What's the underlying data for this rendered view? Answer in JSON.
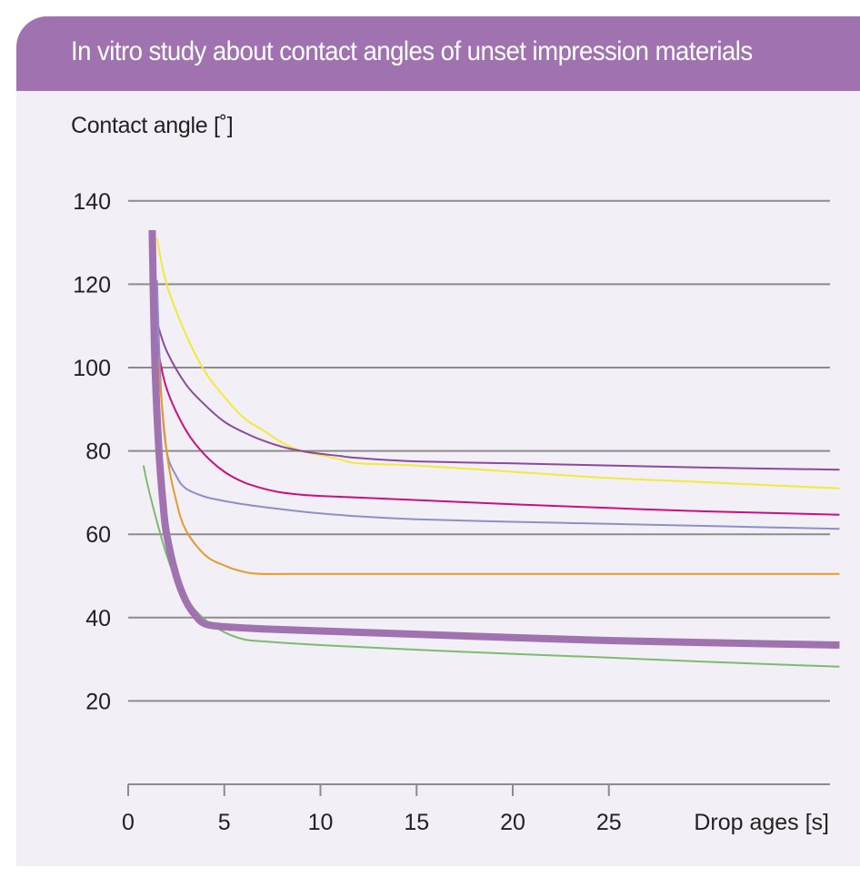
{
  "header": {
    "title": "In vitro study about contact angles of unset impression materials"
  },
  "colors": {
    "header_bg": "#a073b0",
    "panel_bg": "#f3eff6",
    "grid": "#8c8c8c"
  },
  "chart_data": {
    "type": "line",
    "title": "In vitro study about contact angles of unset impression materials",
    "xlabel": "Drop ages [s]",
    "ylabel": "Contact angle [˚]",
    "xlim": [
      0,
      37
    ],
    "ylim": [
      0,
      140
    ],
    "x_ticks": [
      "0",
      "5",
      "10",
      "15",
      "20",
      "25"
    ],
    "y_ticks": [
      "20",
      "40",
      "60",
      "80",
      "100",
      "120",
      "140"
    ],
    "grid": "horizontal",
    "series": [
      {
        "name": "yellow",
        "color": "#f2ea3a",
        "width": 2,
        "x": [
          1.5,
          2,
          3,
          4,
          5,
          6,
          7,
          8,
          9,
          10,
          11,
          12,
          15,
          20,
          25,
          30,
          37
        ],
        "y": [
          131,
          120,
          108,
          99,
          93,
          88,
          85,
          82,
          80,
          79,
          78,
          77,
          76.5,
          75,
          73.5,
          72.5,
          71
        ]
      },
      {
        "name": "purple",
        "color": "#8b4a9c",
        "width": 2,
        "x": [
          1.3,
          1.5,
          2,
          3,
          4,
          5,
          6,
          7,
          8,
          9,
          10,
          11,
          12,
          15,
          20,
          25,
          30,
          37
        ],
        "y": [
          115,
          111,
          104,
          96,
          91,
          87,
          84.5,
          82.5,
          81,
          80,
          79.3,
          78.8,
          78.3,
          77.5,
          77,
          76.5,
          76,
          75.5
        ]
      },
      {
        "name": "magenta",
        "color": "#c8117f",
        "width": 2,
        "x": [
          1.3,
          1.5,
          2,
          3,
          4,
          5,
          6,
          7,
          8,
          9,
          10,
          11,
          12,
          15,
          20,
          25,
          30,
          37
        ],
        "y": [
          117,
          106,
          95,
          85,
          79,
          75,
          72.5,
          71,
          70,
          69.5,
          69.2,
          69,
          68.8,
          68.2,
          67.2,
          66.3,
          65.5,
          64.7
        ]
      },
      {
        "name": "lavender",
        "color": "#8e8fc7",
        "width": 2,
        "x": [
          1.5,
          1.7,
          2,
          2.5,
          3,
          4,
          5,
          6,
          8,
          10,
          12,
          15,
          20,
          25,
          30,
          37
        ],
        "y": [
          121,
          95,
          80,
          74,
          71,
          69,
          68,
          67.2,
          66,
          65,
          64.3,
          63.6,
          63,
          62.5,
          62,
          61.3
        ]
      },
      {
        "name": "orange",
        "color": "#e39a2e",
        "width": 2,
        "x": [
          1.5,
          2,
          2.5,
          3,
          4,
          5,
          6,
          7,
          10,
          15,
          20,
          25,
          30,
          37
        ],
        "y": [
          104,
          80,
          68,
          61,
          55,
          52.5,
          51,
          50.5,
          50.5,
          50.5,
          50.5,
          50.5,
          50.5,
          50.5
        ]
      },
      {
        "name": "green",
        "color": "#7dbb6e",
        "width": 2,
        "x": [
          0.8,
          1,
          1.5,
          2,
          2.5,
          3,
          4,
          5,
          6,
          7,
          10,
          15,
          20,
          25,
          30,
          37
        ],
        "y": [
          76.5,
          72,
          63,
          55,
          49,
          44.5,
          39.5,
          36.5,
          34.8,
          34.3,
          33.4,
          32.3,
          31.3,
          30.4,
          29.4,
          28.2
        ]
      },
      {
        "name": "highlighted (bold purple)",
        "color": "#a073b0",
        "width": 8,
        "x": [
          1.25,
          1.3,
          1.4,
          1.6,
          1.8,
          2,
          2.5,
          3,
          3.5,
          4,
          5,
          7,
          10,
          15,
          20,
          25,
          30,
          37
        ],
        "y": [
          133,
          120,
          100,
          80,
          68,
          60,
          50,
          44,
          40.5,
          38.5,
          37.8,
          37.3,
          36.8,
          36,
          35.2,
          34.5,
          34,
          33.4
        ]
      }
    ]
  }
}
